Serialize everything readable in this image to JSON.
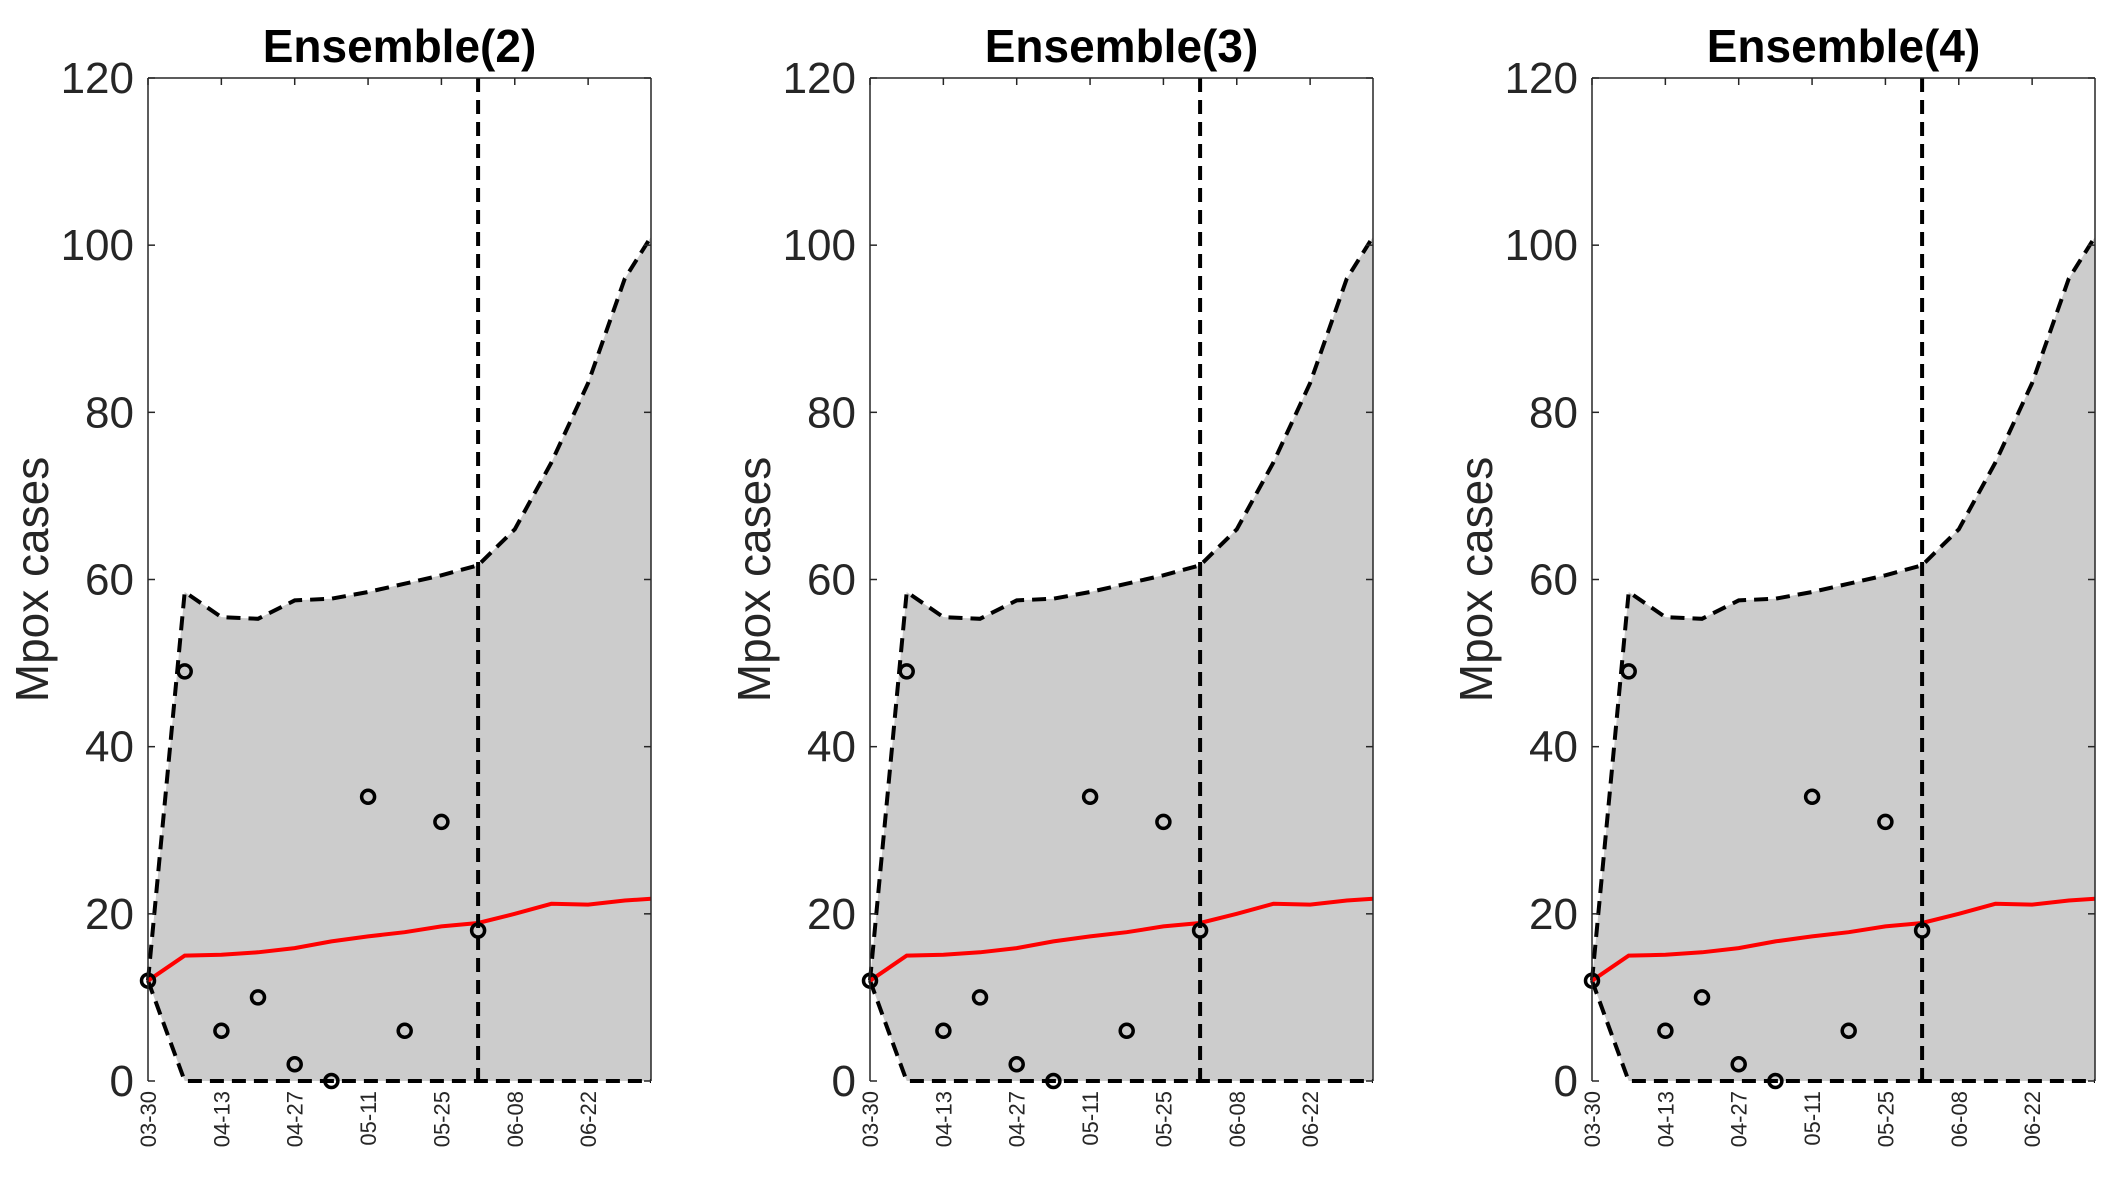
{
  "figure": {
    "bounds_color": "#000000",
    "band_color": "#cccccc",
    "median_color": "#ff0000",
    "observed_color": "#000000"
  },
  "chart_data": [
    {
      "type": "area",
      "title": "Ensemble(2)",
      "ylabel": "Mpox cases",
      "xlabel": "",
      "ylim": [
        0,
        120
      ],
      "yticks": [
        0,
        20,
        40,
        60,
        80,
        100,
        120
      ],
      "xlim": [
        "03-30",
        "07-04"
      ],
      "xtick_labels": [
        "03-30",
        "04-13",
        "04-27",
        "05-11",
        "05-25",
        "06-08",
        "06-22"
      ],
      "grid": false,
      "forecast_start": "06-01",
      "x": [
        "03-30",
        "04-06",
        "04-13",
        "04-20",
        "04-27",
        "05-04",
        "05-11",
        "05-18",
        "05-25",
        "06-01",
        "06-08",
        "06-15",
        "06-22",
        "06-29",
        "07-04"
      ],
      "band_upper": [
        12,
        58.5,
        55.5,
        55.3,
        57.5,
        57.7,
        58.5,
        59.5,
        60.5,
        61.7,
        66,
        74,
        83.5,
        96,
        101
      ],
      "band_lower": [
        12,
        0,
        0,
        0,
        0,
        0,
        0,
        0,
        0,
        0,
        0,
        0,
        0,
        0,
        0
      ],
      "median": [
        12,
        15,
        15.1,
        15.4,
        15.9,
        16.7,
        17.3,
        17.8,
        18.5,
        18.9,
        20,
        21.2,
        21.1,
        21.6,
        21.8
      ],
      "observed": {
        "x": [
          "03-30",
          "04-06",
          "04-13",
          "04-20",
          "04-27",
          "05-04",
          "05-11",
          "05-18",
          "05-25",
          "06-01"
        ],
        "y": [
          12,
          49,
          6,
          10,
          2,
          0,
          34,
          6,
          31,
          18
        ]
      }
    },
    {
      "type": "area",
      "title": "Ensemble(3)",
      "ylabel": "Mpox cases",
      "xlabel": "",
      "ylim": [
        0,
        120
      ],
      "yticks": [
        0,
        20,
        40,
        60,
        80,
        100,
        120
      ],
      "xlim": [
        "03-30",
        "07-04"
      ],
      "xtick_labels": [
        "03-30",
        "04-13",
        "04-27",
        "05-11",
        "05-25",
        "06-08",
        "06-22"
      ],
      "grid": false,
      "forecast_start": "06-01",
      "x": [
        "03-30",
        "04-06",
        "04-13",
        "04-20",
        "04-27",
        "05-04",
        "05-11",
        "05-18",
        "05-25",
        "06-01",
        "06-08",
        "06-15",
        "06-22",
        "06-29",
        "07-04"
      ],
      "band_upper": [
        12,
        58.5,
        55.5,
        55.3,
        57.5,
        57.7,
        58.5,
        59.5,
        60.5,
        61.7,
        66,
        74,
        83.5,
        96,
        101
      ],
      "band_lower": [
        12,
        0,
        0,
        0,
        0,
        0,
        0,
        0,
        0,
        0,
        0,
        0,
        0,
        0,
        0
      ],
      "median": [
        12,
        15,
        15.1,
        15.4,
        15.9,
        16.7,
        17.3,
        17.8,
        18.5,
        18.9,
        20,
        21.2,
        21.1,
        21.6,
        21.8
      ],
      "observed": {
        "x": [
          "03-30",
          "04-06",
          "04-13",
          "04-20",
          "04-27",
          "05-04",
          "05-11",
          "05-18",
          "05-25",
          "06-01"
        ],
        "y": [
          12,
          49,
          6,
          10,
          2,
          0,
          34,
          6,
          31,
          18
        ]
      }
    },
    {
      "type": "area",
      "title": "Ensemble(4)",
      "ylabel": "Mpox cases",
      "xlabel": "",
      "ylim": [
        0,
        120
      ],
      "yticks": [
        0,
        20,
        40,
        60,
        80,
        100,
        120
      ],
      "xlim": [
        "03-30",
        "07-04"
      ],
      "xtick_labels": [
        "03-30",
        "04-13",
        "04-27",
        "05-11",
        "05-25",
        "06-08",
        "06-22"
      ],
      "grid": false,
      "forecast_start": "06-01",
      "x": [
        "03-30",
        "04-06",
        "04-13",
        "04-20",
        "04-27",
        "05-04",
        "05-11",
        "05-18",
        "05-25",
        "06-01",
        "06-08",
        "06-15",
        "06-22",
        "06-29",
        "07-04"
      ],
      "band_upper": [
        12,
        58.5,
        55.5,
        55.3,
        57.5,
        57.7,
        58.5,
        59.5,
        60.5,
        61.7,
        66,
        74,
        83.5,
        96,
        101
      ],
      "band_lower": [
        12,
        0,
        0,
        0,
        0,
        0,
        0,
        0,
        0,
        0,
        0,
        0,
        0,
        0,
        0
      ],
      "median": [
        12,
        15,
        15.1,
        15.4,
        15.9,
        16.7,
        17.3,
        17.8,
        18.5,
        18.9,
        20,
        21.2,
        21.1,
        21.6,
        21.8
      ],
      "observed": {
        "x": [
          "03-30",
          "04-06",
          "04-13",
          "04-20",
          "04-27",
          "05-04",
          "05-11",
          "05-18",
          "05-25",
          "06-01"
        ],
        "y": [
          12,
          49,
          6,
          10,
          2,
          0,
          34,
          6,
          31,
          18
        ]
      }
    }
  ]
}
